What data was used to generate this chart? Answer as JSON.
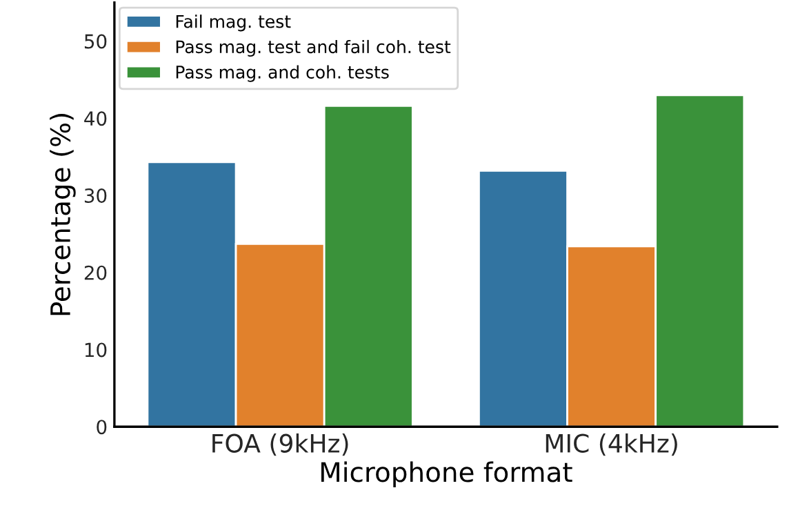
{
  "chart_data": {
    "type": "bar",
    "xlabel": "Microphone format",
    "ylabel": "Percentage (%)",
    "categories": [
      "FOA (9kHz)",
      "MIC (4kHz)"
    ],
    "series": [
      {
        "name": "Fail mag. test",
        "color": "#3274a1",
        "values": [
          34.3,
          33.2
        ]
      },
      {
        "name": "Pass mag. test and fail coh. test",
        "color": "#e1812c",
        "values": [
          23.7,
          23.4
        ]
      },
      {
        "name": "Pass mag. and coh. tests",
        "color": "#3a923a",
        "values": [
          41.6,
          43.0
        ]
      }
    ],
    "ylim": [
      0,
      55
    ],
    "yticks": [
      0,
      10,
      20,
      30,
      40,
      50
    ],
    "grid": false,
    "legend": "top left"
  }
}
